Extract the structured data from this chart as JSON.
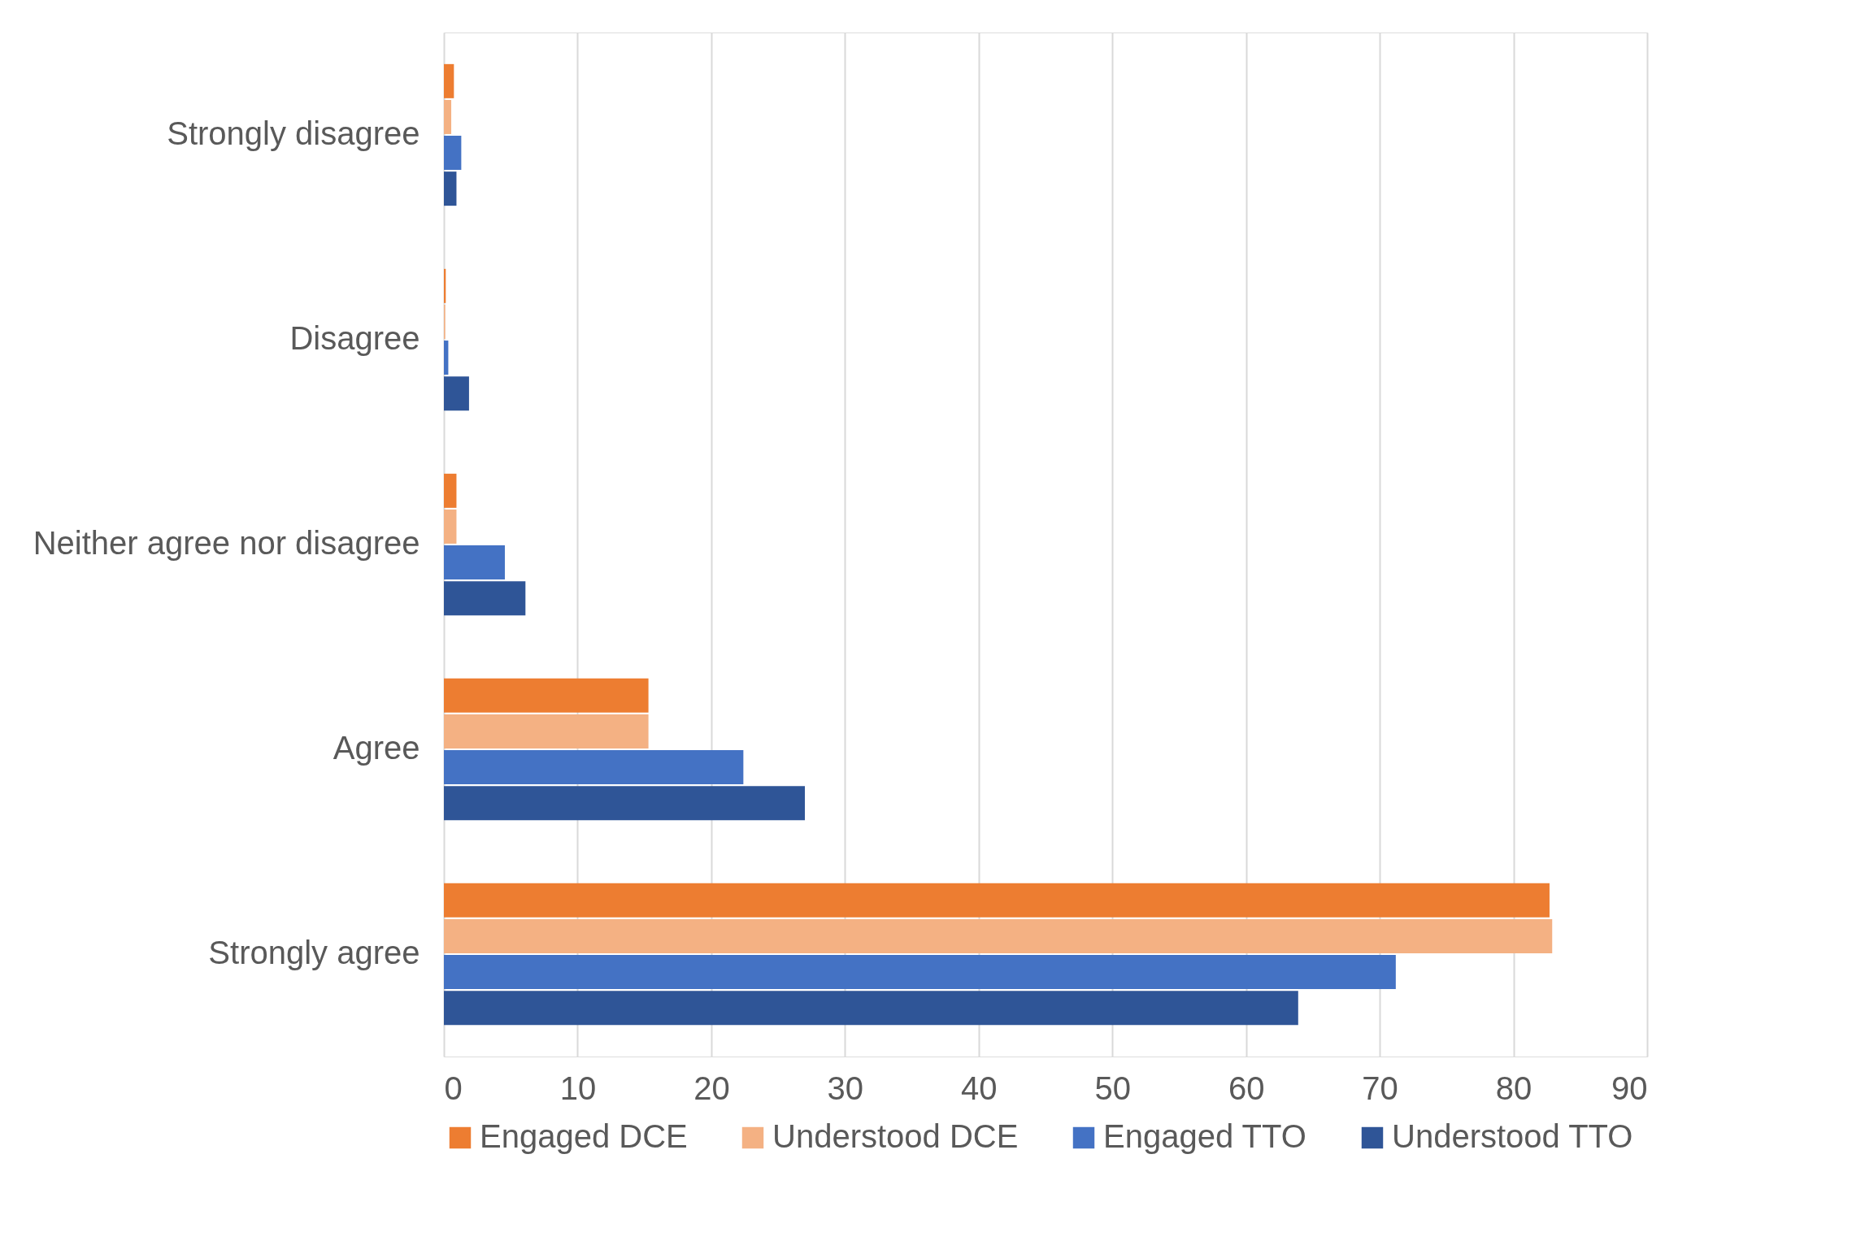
{
  "chart_data": {
    "type": "bar",
    "orientation": "horizontal",
    "categories": [
      "Strongly disagree",
      "Disagree",
      "Neither agree nor disagree",
      "Agree",
      "Strongly agree"
    ],
    "series": [
      {
        "name": "Engaged DCE",
        "color": "#ed7d31",
        "values": [
          0.75,
          0.14,
          0.94,
          15.3,
          82.7
        ]
      },
      {
        "name": "Understood DCE",
        "color": "#f4b183",
        "values": [
          0.55,
          0.1,
          0.94,
          15.3,
          82.9
        ]
      },
      {
        "name": "Engaged TTO",
        "color": "#4472c4",
        "values": [
          1.3,
          0.33,
          4.56,
          22.4,
          71.2
        ]
      },
      {
        "name": "Understood TTO",
        "color": "#2f5597",
        "values": [
          0.94,
          1.88,
          6.1,
          27.0,
          63.9
        ]
      }
    ],
    "xlim": [
      0,
      90
    ],
    "xticks": [
      0,
      10,
      20,
      30,
      40,
      50,
      60,
      70,
      80,
      90
    ],
    "grid": "x",
    "legend": "bottom"
  }
}
